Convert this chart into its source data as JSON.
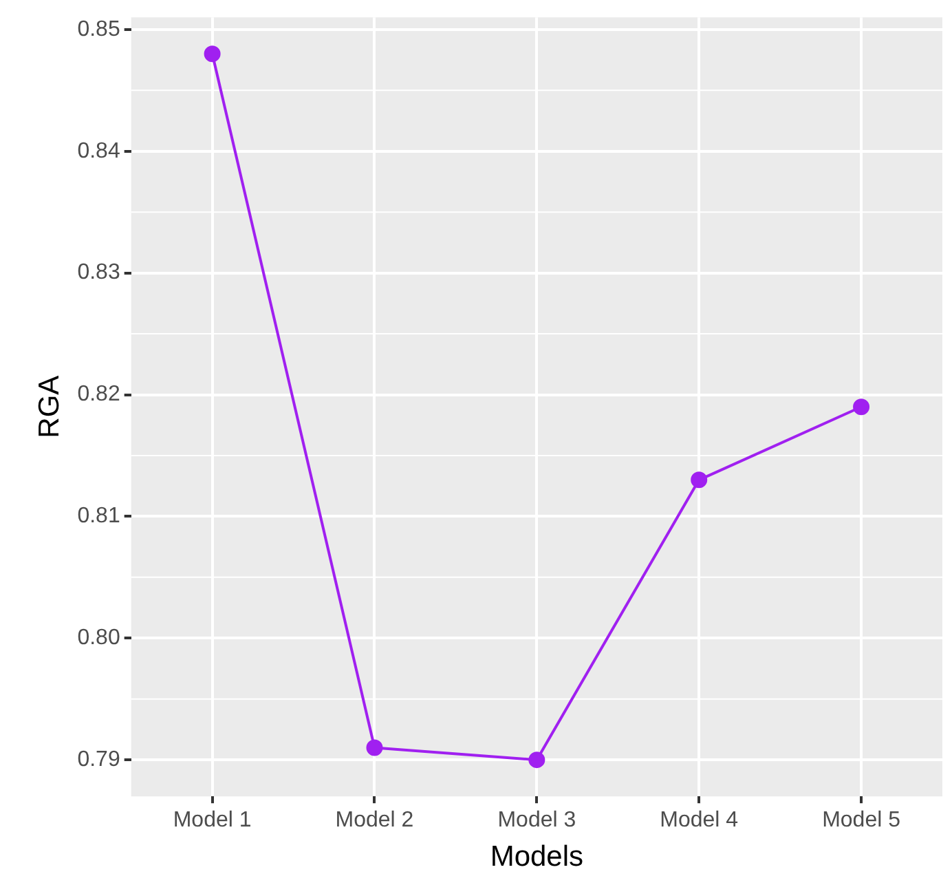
{
  "chart_data": {
    "type": "line",
    "xlabel": "Models",
    "ylabel": "RGA",
    "categories": [
      "Model 1",
      "Model 2",
      "Model 3",
      "Model 4",
      "Model 5"
    ],
    "series": [
      {
        "color": "#a020f0",
        "values": [
          0.848,
          0.791,
          0.79,
          0.813,
          0.819
        ]
      }
    ],
    "ylim": [
      0.787,
      0.851
    ],
    "yticks": [
      {
        "value": 0.79,
        "label": "0.79"
      },
      {
        "value": 0.8,
        "label": "0.80"
      },
      {
        "value": 0.81,
        "label": "0.81"
      },
      {
        "value": 0.82,
        "label": "0.82"
      },
      {
        "value": 0.83,
        "label": "0.83"
      },
      {
        "value": 0.84,
        "label": "0.84"
      },
      {
        "value": 0.85,
        "label": "0.85"
      }
    ],
    "grid": true,
    "legend": false,
    "marker": "circle",
    "line_style": "solid"
  }
}
